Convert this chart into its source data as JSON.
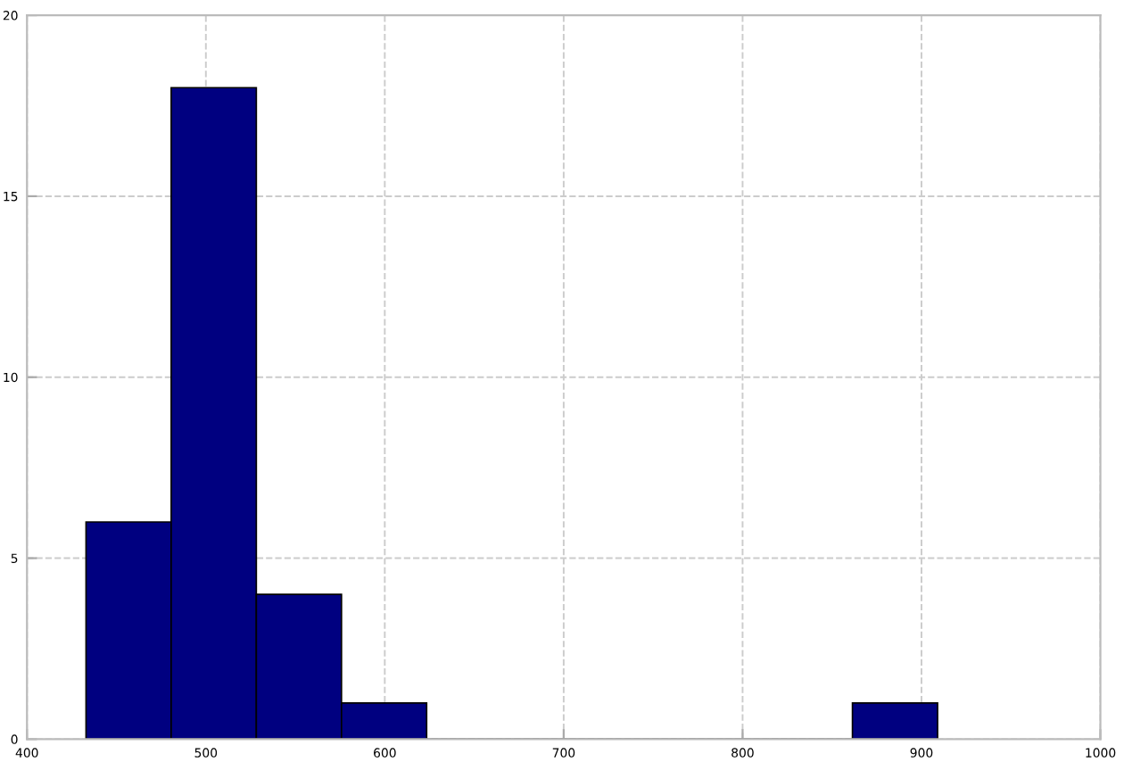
{
  "chart_data": {
    "type": "histogram",
    "bins": [
      433,
      480.6,
      528.2,
      575.8,
      623.4,
      671,
      718.6,
      766.2,
      813.8,
      861.4,
      909
    ],
    "values": [
      6,
      18,
      4,
      1,
      0,
      0,
      0,
      0,
      0,
      1
    ],
    "color": "#000080",
    "xlim": [
      400,
      1000
    ],
    "xticks": [
      400,
      500,
      600,
      700,
      800,
      900,
      1000
    ],
    "ylim": [
      0,
      20
    ],
    "yticks": [
      0,
      5,
      10,
      15,
      20
    ],
    "grid": true
  }
}
